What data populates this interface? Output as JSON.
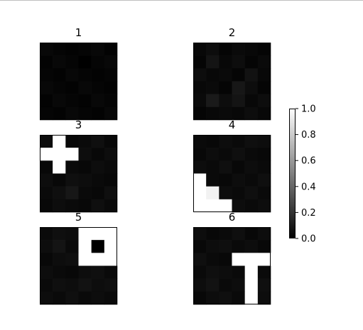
{
  "chart_data": {
    "type": "heatmap",
    "colormap": "gray",
    "color_range": [
      0.0,
      1.0
    ],
    "panels": [
      {
        "title": "1",
        "grid": [
          [
            0.03,
            0.02,
            0.01,
            0.02,
            0.03,
            0.01
          ],
          [
            0.01,
            0.03,
            0.02,
            0.0,
            0.02,
            0.03
          ],
          [
            0.02,
            0.01,
            0.03,
            0.02,
            0.01,
            0.02
          ],
          [
            0.03,
            0.02,
            0.01,
            0.03,
            0.02,
            0.01
          ],
          [
            0.01,
            0.03,
            0.02,
            0.01,
            0.03,
            0.02
          ],
          [
            0.02,
            0.01,
            0.03,
            0.02,
            0.01,
            0.03
          ]
        ]
      },
      {
        "title": "2",
        "grid": [
          [
            0.03,
            0.05,
            0.02,
            0.04,
            0.03,
            0.02
          ],
          [
            0.02,
            0.08,
            0.03,
            0.05,
            0.02,
            0.04
          ],
          [
            0.05,
            0.03,
            0.04,
            0.02,
            0.07,
            0.03
          ],
          [
            0.03,
            0.04,
            0.02,
            0.09,
            0.05,
            0.02
          ],
          [
            0.04,
            0.1,
            0.05,
            0.08,
            0.03,
            0.05
          ],
          [
            0.02,
            0.03,
            0.04,
            0.03,
            0.05,
            0.03
          ]
        ]
      },
      {
        "title": "3",
        "grid": [
          [
            0.05,
            1.0,
            0.03,
            0.04,
            0.06,
            0.03
          ],
          [
            1.0,
            1.0,
            1.0,
            0.05,
            0.03,
            0.05
          ],
          [
            0.03,
            1.0,
            0.04,
            0.03,
            0.05,
            0.04
          ],
          [
            0.05,
            0.03,
            0.06,
            0.05,
            0.04,
            0.03
          ],
          [
            0.04,
            0.06,
            0.09,
            0.04,
            0.03,
            0.06
          ],
          [
            0.03,
            0.05,
            0.04,
            0.03,
            0.06,
            0.04
          ]
        ]
      },
      {
        "title": "4",
        "grid": [
          [
            0.04,
            0.03,
            0.05,
            0.04,
            0.06,
            0.05
          ],
          [
            0.03,
            0.05,
            0.04,
            0.06,
            0.04,
            0.03
          ],
          [
            0.05,
            0.04,
            0.06,
            0.03,
            0.05,
            0.04
          ],
          [
            1.0,
            0.04,
            0.03,
            0.05,
            0.04,
            0.06
          ],
          [
            1.0,
            0.95,
            0.05,
            0.04,
            0.06,
            0.04
          ],
          [
            1.0,
            1.0,
            1.0,
            0.05,
            0.04,
            0.05
          ]
        ]
      },
      {
        "title": "5",
        "grid": [
          [
            0.04,
            0.06,
            0.05,
            1.0,
            1.0,
            1.0
          ],
          [
            0.05,
            0.08,
            0.04,
            1.0,
            0.0,
            1.0
          ],
          [
            0.03,
            0.05,
            0.06,
            1.0,
            1.0,
            1.0
          ],
          [
            0.05,
            0.04,
            0.03,
            0.05,
            0.06,
            0.04
          ],
          [
            0.04,
            0.06,
            0.05,
            0.07,
            0.05,
            0.06
          ],
          [
            0.05,
            0.04,
            0.06,
            0.04,
            0.05,
            0.04
          ]
        ]
      },
      {
        "title": "6",
        "grid": [
          [
            0.05,
            0.03,
            0.04,
            0.06,
            0.03,
            0.05
          ],
          [
            0.03,
            0.05,
            0.06,
            0.04,
            0.05,
            0.03
          ],
          [
            0.06,
            0.04,
            0.03,
            1.0,
            1.0,
            1.0
          ],
          [
            0.04,
            0.06,
            0.05,
            0.04,
            1.0,
            0.04
          ],
          [
            0.05,
            0.07,
            0.04,
            0.05,
            1.0,
            0.06
          ],
          [
            0.03,
            0.05,
            0.06,
            0.04,
            1.0,
            0.05
          ]
        ]
      }
    ],
    "colorbar": {
      "ticks": [
        "0.0",
        "0.2",
        "0.4",
        "0.6",
        "0.8",
        "1.0"
      ]
    }
  }
}
